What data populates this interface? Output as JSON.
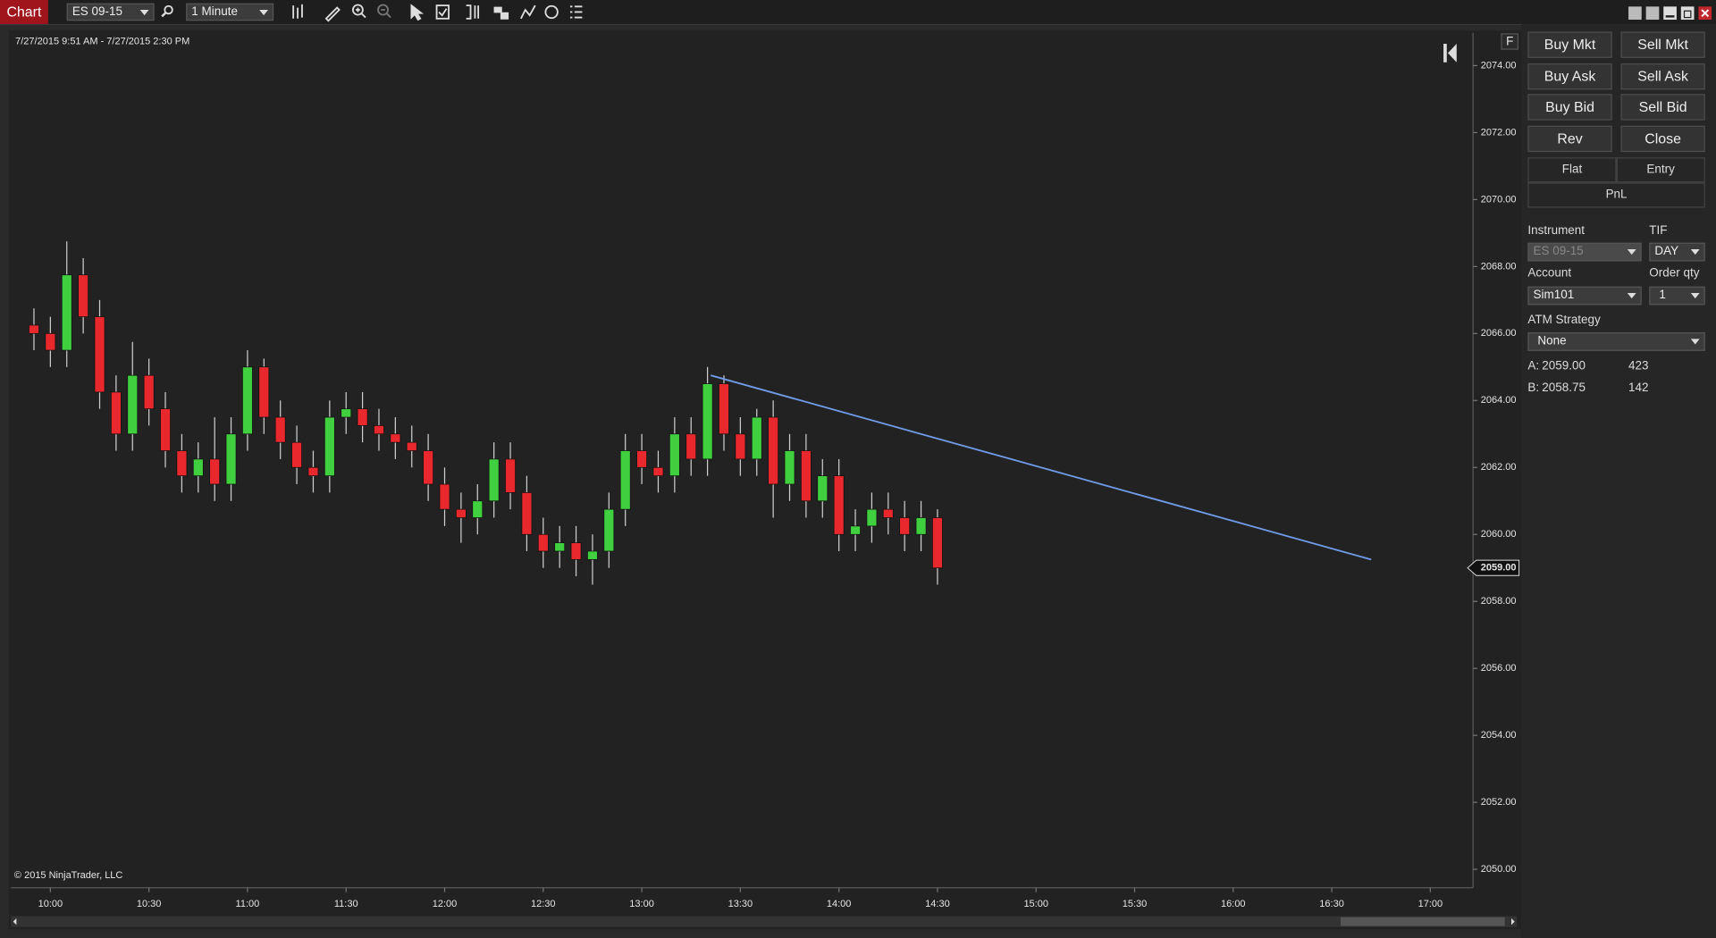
{
  "ui": {
    "window_title": "Chart",
    "instrument_picker": "ES 09-15",
    "interval_picker": "1 Minute",
    "buttons": [
      "Buy Mkt",
      "Sell Mkt",
      "Buy Ask",
      "Sell Ask",
      "Buy Bid",
      "Sell Bid",
      "Rev",
      "Close"
    ],
    "position_headers": [
      "Flat",
      "Entry"
    ],
    "pnl": "PnL",
    "instrument_label": "Instrument",
    "instrument_value": "ES 09-15",
    "tif_label": "TIF",
    "tif_value": "DAY",
    "account_label": "Account",
    "account_value": "Sim101",
    "qty_label": "Order qty",
    "qty_value": "1",
    "atm_label": "ATM Strategy",
    "atm_value": "None",
    "quotes": [
      [
        "A:",
        "2059.00",
        "423"
      ],
      [
        "B:",
        "2058.75",
        "142"
      ]
    ],
    "panel_flag": "F"
  },
  "chart_data": {
    "type": "candlestick",
    "subtitle": "7/27/2015 9:51 AM - 7/27/2015 2:30 PM",
    "annotation": "© 2015 NinjaTrader, LLC",
    "up_color": "#3fcf3f",
    "down_color": "#e8282c",
    "wick_color": "#cfcfcf",
    "x": [
      "09:55",
      "10:00",
      "10:05",
      "10:10",
      "10:15",
      "10:20",
      "10:25",
      "10:30",
      "10:35",
      "10:40",
      "10:45",
      "10:50",
      "10:55",
      "11:00",
      "11:05",
      "11:10",
      "11:15",
      "11:20",
      "11:25",
      "11:30",
      "11:35",
      "11:40",
      "11:45",
      "11:50",
      "11:55",
      "12:00",
      "12:05",
      "12:10",
      "12:15",
      "12:20",
      "12:25",
      "12:30",
      "12:35",
      "12:40",
      "12:45",
      "12:50",
      "12:55",
      "13:00",
      "13:05",
      "13:10",
      "13:15",
      "13:20",
      "13:25",
      "13:30",
      "13:35",
      "13:40",
      "13:45",
      "13:50",
      "13:55",
      "14:00",
      "14:05",
      "14:10",
      "14:15",
      "14:20",
      "14:25",
      "14:30"
    ],
    "open": [
      2066.25,
      2066.0,
      2065.5,
      2067.75,
      2066.5,
      2064.25,
      2063.0,
      2064.75,
      2063.75,
      2062.5,
      2061.75,
      2062.25,
      2061.5,
      2063.0,
      2065.0,
      2063.5,
      2062.75,
      2062.0,
      2061.75,
      2063.5,
      2063.75,
      2063.25,
      2063.0,
      2062.75,
      2062.5,
      2061.5,
      2060.75,
      2060.5,
      2061.0,
      2062.25,
      2061.25,
      2060.0,
      2059.5,
      2059.75,
      2059.25,
      2059.5,
      2060.75,
      2062.5,
      2062.0,
      2061.75,
      2063.0,
      2062.25,
      2064.5,
      2063.0,
      2062.25,
      2063.5,
      2061.5,
      2062.5,
      2061.0,
      2061.75,
      2060.0,
      2060.25,
      2060.75,
      2060.5,
      2060.0,
      2060.5
    ],
    "high": [
      2066.75,
      2066.5,
      2068.75,
      2068.25,
      2067.0,
      2064.75,
      2065.75,
      2065.25,
      2064.25,
      2063.0,
      2062.75,
      2063.5,
      2063.5,
      2065.5,
      2065.25,
      2064.0,
      2063.25,
      2062.5,
      2064.0,
      2064.25,
      2064.25,
      2063.75,
      2063.5,
      2063.25,
      2063.0,
      2062.0,
      2061.25,
      2061.5,
      2062.75,
      2062.75,
      2061.75,
      2060.5,
      2060.25,
      2060.25,
      2060.0,
      2061.25,
      2063.0,
      2063.0,
      2062.5,
      2063.5,
      2063.5,
      2065.0,
      2064.75,
      2063.5,
      2063.75,
      2064.0,
      2063.0,
      2063.0,
      2062.25,
      2062.25,
      2060.75,
      2061.25,
      2061.25,
      2061.0,
      2061.0,
      2060.75
    ],
    "low": [
      2065.5,
      2065.0,
      2065.0,
      2066.0,
      2063.75,
      2062.5,
      2062.5,
      2063.25,
      2062.0,
      2061.25,
      2061.25,
      2061.0,
      2061.0,
      2062.5,
      2063.0,
      2062.25,
      2061.5,
      2061.25,
      2061.25,
      2063.0,
      2062.75,
      2062.5,
      2062.25,
      2062.0,
      2061.0,
      2060.25,
      2059.75,
      2060.0,
      2060.5,
      2060.75,
      2059.5,
      2059.0,
      2059.0,
      2058.75,
      2058.5,
      2059.0,
      2060.25,
      2061.5,
      2061.25,
      2061.25,
      2061.75,
      2061.75,
      2062.5,
      2061.75,
      2061.75,
      2060.5,
      2061.0,
      2060.5,
      2060.5,
      2059.5,
      2059.5,
      2059.75,
      2060.0,
      2059.5,
      2059.5,
      2058.5
    ],
    "close": [
      2066.0,
      2065.5,
      2067.75,
      2066.5,
      2064.25,
      2063.0,
      2064.75,
      2063.75,
      2062.5,
      2061.75,
      2062.25,
      2061.5,
      2063.0,
      2065.0,
      2063.5,
      2062.75,
      2062.0,
      2061.75,
      2063.5,
      2063.75,
      2063.25,
      2063.0,
      2062.75,
      2062.5,
      2061.5,
      2060.75,
      2060.5,
      2061.0,
      2062.25,
      2061.25,
      2060.0,
      2059.5,
      2059.75,
      2059.25,
      2059.5,
      2060.75,
      2062.5,
      2062.0,
      2061.75,
      2063.0,
      2062.25,
      2064.5,
      2063.0,
      2062.25,
      2063.5,
      2061.5,
      2062.5,
      2061.0,
      2061.75,
      2060.0,
      2060.25,
      2060.75,
      2060.5,
      2060.0,
      2060.5,
      2059.0
    ],
    "trendline": {
      "x": [
        "13:21",
        "16:42"
      ],
      "y": [
        2064.75,
        2059.25
      ],
      "color": "#6f9be8"
    },
    "last_price": {
      "value": 2059.0,
      "label": "2059.00"
    },
    "xlim": [
      "09:48",
      "17:13"
    ],
    "xticks": [
      "10:00",
      "10:30",
      "11:00",
      "11:30",
      "12:00",
      "12:30",
      "13:00",
      "13:30",
      "14:00",
      "14:30",
      "15:00",
      "15:30",
      "16:00",
      "16:30",
      "17:00"
    ],
    "ylim": [
      2049.45,
      2074.98
    ],
    "yticks": [
      {
        "value": 2050,
        "label": "2050.00"
      },
      {
        "value": 2052,
        "label": "2052.00"
      },
      {
        "value": 2054,
        "label": "2054.00"
      },
      {
        "value": 2056,
        "label": "2056.00"
      },
      {
        "value": 2058,
        "label": "2058.00"
      },
      {
        "value": 2060,
        "label": "2060.00"
      },
      {
        "value": 2062,
        "label": "2062.00"
      },
      {
        "value": 2064,
        "label": "2064.00"
      },
      {
        "value": 2066,
        "label": "2066.00"
      },
      {
        "value": 2068,
        "label": "2068.00"
      },
      {
        "value": 2070,
        "label": "2070.00"
      },
      {
        "value": 2072,
        "label": "2072.00"
      },
      {
        "value": 2074,
        "label": "2074.00"
      }
    ]
  }
}
